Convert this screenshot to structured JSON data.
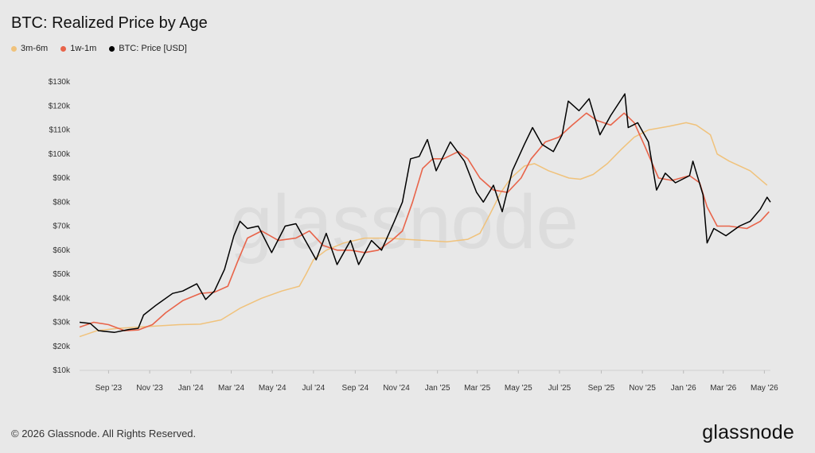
{
  "title": "BTC: Realized Price by Age",
  "footer": "© 2026 Glassnode. All Rights Reserved.",
  "logo": "glassnode",
  "watermark": "glassnode",
  "chart_data": {
    "type": "line",
    "title": "BTC: Realized Price by Age",
    "xlabel": "",
    "ylabel": "",
    "x_ticks": [
      "Sep '23",
      "Nov '23",
      "Jan '24",
      "Mar '24",
      "May '24",
      "Jul '24",
      "Sep '24",
      "Nov '24",
      "Jan '25",
      "Mar '25",
      "May '25",
      "Jul '25",
      "Sep '25",
      "Nov '25",
      "Jan '26",
      "Mar '26",
      "May '26"
    ],
    "y_ticks": [
      "$10k",
      "$20k",
      "$30k",
      "$40k",
      "$50k",
      "$60k",
      "$70k",
      "$80k",
      "$90k",
      "$100k",
      "$110k",
      "$120k",
      "$130k"
    ],
    "ylim": [
      10000,
      130000
    ],
    "xlim": [
      "2023-07-20",
      "2026-05-10"
    ],
    "legend_position": "top-left",
    "grid": false,
    "series": [
      {
        "name": "3m-6m",
        "color": "#f0c27b",
        "points": [
          [
            "2023-07-20",
            24000
          ],
          [
            "2023-08-15",
            26500
          ],
          [
            "2023-09-15",
            27500
          ],
          [
            "2023-10-15",
            28000
          ],
          [
            "2023-11-15",
            28500
          ],
          [
            "2023-12-15",
            29000
          ],
          [
            "2024-01-15",
            29200
          ],
          [
            "2024-02-15",
            31000
          ],
          [
            "2024-03-15",
            36000
          ],
          [
            "2024-04-15",
            40000
          ],
          [
            "2024-05-15",
            43000
          ],
          [
            "2024-06-10",
            45000
          ],
          [
            "2024-06-20",
            50000
          ],
          [
            "2024-07-01",
            56000
          ],
          [
            "2024-07-20",
            60000
          ],
          [
            "2024-08-15",
            63000
          ],
          [
            "2024-09-15",
            65000
          ],
          [
            "2024-10-15",
            65000
          ],
          [
            "2024-11-15",
            64500
          ],
          [
            "2024-12-15",
            64000
          ],
          [
            "2025-01-15",
            63500
          ],
          [
            "2025-02-15",
            64500
          ],
          [
            "2025-03-05",
            67000
          ],
          [
            "2025-03-20",
            75000
          ],
          [
            "2025-04-05",
            84000
          ],
          [
            "2025-04-20",
            90000
          ],
          [
            "2025-05-10",
            95000
          ],
          [
            "2025-05-25",
            96000
          ],
          [
            "2025-06-15",
            93000
          ],
          [
            "2025-07-15",
            90000
          ],
          [
            "2025-08-01",
            89500
          ],
          [
            "2025-08-20",
            91500
          ],
          [
            "2025-09-10",
            96000
          ],
          [
            "2025-10-01",
            102000
          ],
          [
            "2025-10-20",
            107000
          ],
          [
            "2025-11-10",
            110000
          ],
          [
            "2025-12-10",
            111500
          ],
          [
            "2026-01-05",
            113000
          ],
          [
            "2026-01-20",
            112000
          ],
          [
            "2026-02-10",
            108000
          ],
          [
            "2026-02-20",
            100000
          ],
          [
            "2026-03-10",
            97000
          ],
          [
            "2026-04-10",
            93000
          ],
          [
            "2026-05-05",
            87000
          ]
        ]
      },
      {
        "name": "1w-1m",
        "color": "#e8644a",
        "points": [
          [
            "2023-07-20",
            28000
          ],
          [
            "2023-08-10",
            30000
          ],
          [
            "2023-09-01",
            29000
          ],
          [
            "2023-09-25",
            26500
          ],
          [
            "2023-10-15",
            26800
          ],
          [
            "2023-11-05",
            29000
          ],
          [
            "2023-11-25",
            34000
          ],
          [
            "2023-12-20",
            39000
          ],
          [
            "2024-01-15",
            42000
          ],
          [
            "2024-02-05",
            42500
          ],
          [
            "2024-02-25",
            45000
          ],
          [
            "2024-03-10",
            55000
          ],
          [
            "2024-03-25",
            65000
          ],
          [
            "2024-04-15",
            68000
          ],
          [
            "2024-05-10",
            64000
          ],
          [
            "2024-06-05",
            65000
          ],
          [
            "2024-06-25",
            68000
          ],
          [
            "2024-07-15",
            62000
          ],
          [
            "2024-08-05",
            60000
          ],
          [
            "2024-08-25",
            60000
          ],
          [
            "2024-09-15",
            59000
          ],
          [
            "2024-10-05",
            60000
          ],
          [
            "2024-10-25",
            64000
          ],
          [
            "2024-11-10",
            68000
          ],
          [
            "2024-11-25",
            80000
          ],
          [
            "2024-12-10",
            94000
          ],
          [
            "2024-12-25",
            98000
          ],
          [
            "2025-01-10",
            98000
          ],
          [
            "2025-02-01",
            101000
          ],
          [
            "2025-02-15",
            98000
          ],
          [
            "2025-03-05",
            90000
          ],
          [
            "2025-03-25",
            85000
          ],
          [
            "2025-04-15",
            84000
          ],
          [
            "2025-05-05",
            90000
          ],
          [
            "2025-05-20",
            98000
          ],
          [
            "2025-06-10",
            105000
          ],
          [
            "2025-06-30",
            107000
          ],
          [
            "2025-07-20",
            112000
          ],
          [
            "2025-08-10",
            117000
          ],
          [
            "2025-08-25",
            114000
          ],
          [
            "2025-09-15",
            112000
          ],
          [
            "2025-10-05",
            117000
          ],
          [
            "2025-10-20",
            113000
          ],
          [
            "2025-11-05",
            103000
          ],
          [
            "2025-11-25",
            90000
          ],
          [
            "2025-12-15",
            89000
          ],
          [
            "2026-01-10",
            91000
          ],
          [
            "2026-01-25",
            88000
          ],
          [
            "2026-02-05",
            78000
          ],
          [
            "2026-02-20",
            70000
          ],
          [
            "2026-03-10",
            70000
          ],
          [
            "2026-04-05",
            69000
          ],
          [
            "2026-04-25",
            72000
          ],
          [
            "2026-05-08",
            76000
          ]
        ]
      },
      {
        "name": "BTC: Price [USD]",
        "color": "#000000",
        "points": [
          [
            "2023-07-20",
            30000
          ],
          [
            "2023-08-05",
            29500
          ],
          [
            "2023-08-17",
            26500
          ],
          [
            "2023-09-10",
            25800
          ],
          [
            "2023-10-01",
            27000
          ],
          [
            "2023-10-15",
            27500
          ],
          [
            "2023-10-23",
            33000
          ],
          [
            "2023-11-10",
            37000
          ],
          [
            "2023-12-05",
            42000
          ],
          [
            "2023-12-20",
            43000
          ],
          [
            "2024-01-10",
            46000
          ],
          [
            "2024-01-23",
            39500
          ],
          [
            "2024-02-05",
            43000
          ],
          [
            "2024-02-20",
            52000
          ],
          [
            "2024-03-05",
            66000
          ],
          [
            "2024-03-14",
            72000
          ],
          [
            "2024-03-25",
            69000
          ],
          [
            "2024-04-10",
            70000
          ],
          [
            "2024-04-30",
            59000
          ],
          [
            "2024-05-20",
            70000
          ],
          [
            "2024-06-05",
            71000
          ],
          [
            "2024-06-25",
            61000
          ],
          [
            "2024-07-05",
            56000
          ],
          [
            "2024-07-20",
            67000
          ],
          [
            "2024-08-05",
            54000
          ],
          [
            "2024-08-25",
            64000
          ],
          [
            "2024-09-06",
            54000
          ],
          [
            "2024-09-25",
            64000
          ],
          [
            "2024-10-10",
            60000
          ],
          [
            "2024-10-29",
            72000
          ],
          [
            "2024-11-10",
            80000
          ],
          [
            "2024-11-22",
            98000
          ],
          [
            "2024-12-05",
            99000
          ],
          [
            "2024-12-17",
            106000
          ],
          [
            "2024-12-30",
            93000
          ],
          [
            "2025-01-20",
            105000
          ],
          [
            "2025-02-10",
            97000
          ],
          [
            "2025-02-28",
            84000
          ],
          [
            "2025-03-10",
            80000
          ],
          [
            "2025-03-25",
            87000
          ],
          [
            "2025-04-07",
            76000
          ],
          [
            "2025-04-22",
            93000
          ],
          [
            "2025-05-10",
            104000
          ],
          [
            "2025-05-22",
            111000
          ],
          [
            "2025-06-05",
            104000
          ],
          [
            "2025-06-22",
            101000
          ],
          [
            "2025-07-05",
            108000
          ],
          [
            "2025-07-14",
            122000
          ],
          [
            "2025-07-30",
            118000
          ],
          [
            "2025-08-14",
            123000
          ],
          [
            "2025-08-30",
            108000
          ],
          [
            "2025-09-15",
            116000
          ],
          [
            "2025-10-06",
            125000
          ],
          [
            "2025-10-11",
            111000
          ],
          [
            "2025-10-25",
            113000
          ],
          [
            "2025-11-10",
            105000
          ],
          [
            "2025-11-22",
            85000
          ],
          [
            "2025-12-05",
            92000
          ],
          [
            "2025-12-20",
            88000
          ],
          [
            "2026-01-10",
            91000
          ],
          [
            "2026-01-15",
            97000
          ],
          [
            "2026-01-30",
            83000
          ],
          [
            "2026-02-05",
            63000
          ],
          [
            "2026-02-15",
            69000
          ],
          [
            "2026-03-05",
            66000
          ],
          [
            "2026-03-25",
            70000
          ],
          [
            "2026-04-10",
            72000
          ],
          [
            "2026-04-25",
            77000
          ],
          [
            "2026-05-05",
            82000
          ],
          [
            "2026-05-10",
            80000
          ]
        ]
      }
    ]
  }
}
